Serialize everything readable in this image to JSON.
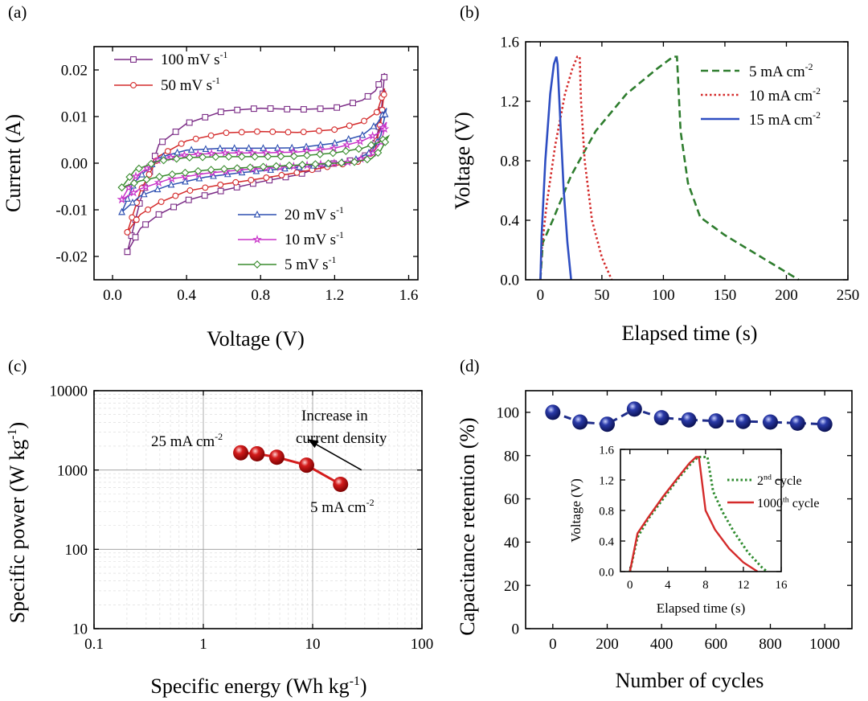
{
  "chart_data": [
    {
      "panel": "(a)",
      "type": "line",
      "xlabel": "Voltage (V)",
      "ylabel": "Current (A)",
      "xlim": [
        -0.1,
        1.65
      ],
      "ylim": [
        -0.025,
        0.025
      ],
      "xticks": [
        "0.0",
        "0.4",
        "0.8",
        "1.2",
        "1.6"
      ],
      "xtick_values": [
        0.0,
        0.4,
        0.8,
        1.2,
        1.6
      ],
      "yticks": [
        "-0.02",
        "-0.01",
        "0.00",
        "0.01",
        "0.02"
      ],
      "ytick_values": [
        -0.02,
        -0.01,
        0.0,
        0.01,
        0.02
      ],
      "series": [
        {
          "name": "100 mV s",
          "sup": "-1",
          "color": "#7b2c86",
          "marker": "square",
          "legend": "top",
          "upper": [
            [
              0.08,
              -0.019
            ],
            [
              0.15,
              -0.008
            ],
            [
              0.25,
              0.004
            ],
            [
              0.4,
              0.0085
            ],
            [
              0.6,
              0.0112
            ],
            [
              0.8,
              0.0118
            ],
            [
              1.0,
              0.0115
            ],
            [
              1.2,
              0.0118
            ],
            [
              1.35,
              0.0135
            ],
            [
              1.42,
              0.0155
            ],
            [
              1.47,
              0.0193
            ]
          ],
          "lower": [
            [
              1.47,
              0.0193
            ],
            [
              1.45,
              0.01
            ],
            [
              1.42,
              0.004
            ],
            [
              1.35,
              0.001
            ],
            [
              1.2,
              0.0
            ],
            [
              1.0,
              -0.0025
            ],
            [
              0.8,
              -0.004
            ],
            [
              0.6,
              -0.0058
            ],
            [
              0.4,
              -0.008
            ],
            [
              0.25,
              -0.011
            ],
            [
              0.15,
              -0.014
            ],
            [
              0.08,
              -0.019
            ]
          ]
        },
        {
          "name": "50 mV s",
          "sup": "-1",
          "color": "#d42b2b",
          "marker": "circle",
          "legend": "top",
          "upper": [
            [
              0.08,
              -0.0148
            ],
            [
              0.15,
              -0.006
            ],
            [
              0.25,
              0.0015
            ],
            [
              0.4,
              0.0048
            ],
            [
              0.6,
              0.0065
            ],
            [
              0.8,
              0.0068
            ],
            [
              1.0,
              0.0066
            ],
            [
              1.2,
              0.0072
            ],
            [
              1.35,
              0.0088
            ],
            [
              1.43,
              0.011
            ],
            [
              1.47,
              0.016
            ]
          ],
          "lower": [
            [
              1.47,
              0.016
            ],
            [
              1.45,
              0.009
            ],
            [
              1.42,
              0.003
            ],
            [
              1.35,
              0.0005
            ],
            [
              1.2,
              -0.0005
            ],
            [
              1.0,
              -0.002
            ],
            [
              0.8,
              -0.0033
            ],
            [
              0.6,
              -0.0045
            ],
            [
              0.4,
              -0.006
            ],
            [
              0.25,
              -0.0085
            ],
            [
              0.15,
              -0.011
            ],
            [
              0.08,
              -0.0148
            ]
          ]
        },
        {
          "name": "20 mV s",
          "sup": "-1",
          "color": "#2d4fb1",
          "marker": "triangle",
          "legend": "bottom",
          "upper": [
            [
              0.05,
              -0.0105
            ],
            [
              0.12,
              -0.004
            ],
            [
              0.25,
              0.0012
            ],
            [
              0.4,
              0.0028
            ],
            [
              0.6,
              0.0032
            ],
            [
              0.8,
              0.0032
            ],
            [
              1.0,
              0.0033
            ],
            [
              1.2,
              0.0043
            ],
            [
              1.35,
              0.006
            ],
            [
              1.43,
              0.0085
            ],
            [
              1.48,
              0.0118
            ]
          ],
          "lower": [
            [
              1.48,
              0.0118
            ],
            [
              1.45,
              0.006
            ],
            [
              1.4,
              0.0025
            ],
            [
              1.3,
              0.0005
            ],
            [
              1.1,
              -0.0005
            ],
            [
              0.9,
              -0.0013
            ],
            [
              0.7,
              -0.002
            ],
            [
              0.5,
              -0.003
            ],
            [
              0.3,
              -0.0048
            ],
            [
              0.15,
              -0.007
            ],
            [
              0.05,
              -0.0105
            ]
          ]
        },
        {
          "name": "10 mV s",
          "sup": "-1",
          "color": "#c832c8",
          "marker": "star",
          "legend": "bottom",
          "upper": [
            [
              0.05,
              -0.0078
            ],
            [
              0.12,
              -0.003
            ],
            [
              0.25,
              0.0008
            ],
            [
              0.4,
              0.0018
            ],
            [
              0.6,
              0.0022
            ],
            [
              0.8,
              0.0022
            ],
            [
              1.0,
              0.0024
            ],
            [
              1.2,
              0.0032
            ],
            [
              1.35,
              0.0048
            ],
            [
              1.44,
              0.0065
            ],
            [
              1.48,
              0.0088
            ]
          ],
          "lower": [
            [
              1.48,
              0.0088
            ],
            [
              1.45,
              0.0045
            ],
            [
              1.4,
              0.0018
            ],
            [
              1.3,
              0.0003
            ],
            [
              1.1,
              -0.0003
            ],
            [
              0.9,
              -0.0009
            ],
            [
              0.7,
              -0.0014
            ],
            [
              0.5,
              -0.0022
            ],
            [
              0.3,
              -0.0035
            ],
            [
              0.15,
              -0.0055
            ],
            [
              0.05,
              -0.0078
            ]
          ]
        },
        {
          "name": "5 mV s",
          "sup": "-1",
          "color": "#3a8c2f",
          "marker": "diamond",
          "legend": "bottom",
          "upper": [
            [
              0.05,
              -0.0052
            ],
            [
              0.12,
              -0.0015
            ],
            [
              0.25,
              0.0005
            ],
            [
              0.4,
              0.0012
            ],
            [
              0.6,
              0.0014
            ],
            [
              0.8,
              0.0014
            ],
            [
              1.0,
              0.0015
            ],
            [
              1.2,
              0.0022
            ],
            [
              1.35,
              0.0032
            ],
            [
              1.44,
              0.0045
            ],
            [
              1.49,
              0.0058
            ]
          ],
          "lower": [
            [
              1.49,
              0.0058
            ],
            [
              1.45,
              0.0028
            ],
            [
              1.4,
              0.001
            ],
            [
              1.3,
              0.0002
            ],
            [
              1.1,
              -0.0002
            ],
            [
              0.9,
              -0.0006
            ],
            [
              0.7,
              -0.001
            ],
            [
              0.5,
              -0.0015
            ],
            [
              0.3,
              -0.0025
            ],
            [
              0.15,
              -0.0038
            ],
            [
              0.05,
              -0.0052
            ]
          ]
        }
      ]
    },
    {
      "panel": "(b)",
      "type": "line",
      "xlabel": "Elapsed time (s)",
      "ylabel": "Voltage (V)",
      "xlim": [
        -12,
        250
      ],
      "ylim": [
        0,
        1.6
      ],
      "xticks": [
        "0",
        "50",
        "100",
        "150",
        "200",
        "250"
      ],
      "xtick_values": [
        0,
        50,
        100,
        150,
        200,
        250
      ],
      "yticks": [
        "0.0",
        "0.4",
        "0.8",
        "1.2",
        "1.6"
      ],
      "ytick_values": [
        0.0,
        0.4,
        0.8,
        1.2,
        1.6
      ],
      "series": [
        {
          "name": "5 mA cm",
          "sup": "-2",
          "color": "#2e7d2e",
          "dash": "dashed",
          "points": [
            [
              0,
              0
            ],
            [
              2,
              0.25
            ],
            [
              10,
              0.4
            ],
            [
              25,
              0.7
            ],
            [
              45,
              1.0
            ],
            [
              70,
              1.25
            ],
            [
              95,
              1.42
            ],
            [
              108,
              1.5
            ],
            [
              111,
              1.5
            ],
            [
              114,
              1.0
            ],
            [
              120,
              0.65
            ],
            [
              130,
              0.42
            ],
            [
              150,
              0.3
            ],
            [
              180,
              0.15
            ],
            [
              210,
              0.0
            ]
          ]
        },
        {
          "name": "10 mA cm",
          "sup": "-2",
          "color": "#d42b2b",
          "dash": "dotted",
          "points": [
            [
              0,
              0
            ],
            [
              1,
              0.2
            ],
            [
              5,
              0.5
            ],
            [
              12,
              0.9
            ],
            [
              20,
              1.25
            ],
            [
              26,
              1.42
            ],
            [
              30,
              1.5
            ],
            [
              32,
              1.5
            ],
            [
              33,
              1.2
            ],
            [
              36,
              0.8
            ],
            [
              42,
              0.4
            ],
            [
              50,
              0.15
            ],
            [
              58,
              0.0
            ]
          ]
        },
        {
          "name": "15 mA cm",
          "sup": "-2",
          "color": "#2e4ec2",
          "dash": "solid",
          "points": [
            [
              0,
              0
            ],
            [
              1,
              0.3
            ],
            [
              4,
              0.8
            ],
            [
              8,
              1.25
            ],
            [
              11,
              1.45
            ],
            [
              13,
              1.5
            ],
            [
              14,
              1.45
            ],
            [
              16,
              1.1
            ],
            [
              19,
              0.6
            ],
            [
              22,
              0.25
            ],
            [
              25,
              0.0
            ]
          ]
        }
      ]
    },
    {
      "panel": "(c)",
      "type": "scatter",
      "xlabel": "Specific energy (Wh kg",
      "xlabel_sup": "-1",
      "xlabel_end": ")",
      "ylabel": "Specific power (W kg",
      "ylabel_sup": "-1",
      "ylabel_end": ")",
      "xscale": "log",
      "yscale": "log",
      "xlim": [
        0.1,
        100
      ],
      "ylim": [
        10,
        10000
      ],
      "xticks": [
        "0.1",
        "1",
        "10",
        "100"
      ],
      "xtick_values": [
        0.1,
        1,
        10,
        100
      ],
      "yticks": [
        "10",
        "100",
        "1000",
        "10000"
      ],
      "ytick_values": [
        10,
        100,
        1000,
        10000
      ],
      "grid": true,
      "color": "#d41c1c",
      "points": [
        [
          2.2,
          1650
        ],
        [
          3.1,
          1600
        ],
        [
          4.7,
          1450
        ],
        [
          8.8,
          1150
        ],
        [
          18,
          660
        ]
      ],
      "annotation_arrow": {
        "from": [
          28,
          1000
        ],
        "to": [
          9,
          2450
        ]
      },
      "annotations": {
        "high_label": "25 mA cm",
        "high_sup": "-2",
        "low_label": "5 mA cm",
        "low_sup": "-2",
        "arrow_line1": "Increase in",
        "arrow_line2": "current density"
      }
    },
    {
      "panel": "(d)",
      "type": "scatter",
      "xlabel": "Number of cycles",
      "ylabel": "Capacitance retention (%)",
      "xlim": [
        -100,
        1100
      ],
      "ylim": [
        0,
        110
      ],
      "xticks": [
        "0",
        "200",
        "400",
        "600",
        "800",
        "1000"
      ],
      "xtick_values": [
        0,
        200,
        400,
        600,
        800,
        1000
      ],
      "yticks": [
        "0",
        "20",
        "40",
        "60",
        "80",
        "100"
      ],
      "ytick_values": [
        0,
        20,
        40,
        60,
        80,
        100
      ],
      "color": "#1f2d8a",
      "points": [
        [
          0,
          100
        ],
        [
          100,
          95.5
        ],
        [
          200,
          94.5
        ],
        [
          300,
          101.5
        ],
        [
          400,
          97.5
        ],
        [
          500,
          96.5
        ],
        [
          600,
          96
        ],
        [
          700,
          95.8
        ],
        [
          800,
          95.5
        ],
        [
          900,
          95
        ],
        [
          1000,
          94.5
        ]
      ],
      "inset": {
        "type": "line",
        "xlabel": "Elapsed time (s)",
        "ylabel": "Voltage (V)",
        "xlim": [
          -1,
          16
        ],
        "ylim": [
          0,
          1.6
        ],
        "xticks": [
          "0",
          "4",
          "8",
          "12",
          "16"
        ],
        "xtick_values": [
          0,
          4,
          8,
          12,
          16
        ],
        "yticks": [
          "0.0",
          "0.4",
          "0.8",
          "1.2",
          "1.6"
        ],
        "ytick_values": [
          0.0,
          0.4,
          0.8,
          1.2,
          1.6
        ],
        "series": [
          {
            "name": "2",
            "sup": "nd",
            "suffix": " cycle",
            "color": "#2e8b2e",
            "dash": "dotted",
            "points": [
              [
                0,
                0
              ],
              [
                0.8,
                0.45
              ],
              [
                2,
                0.7
              ],
              [
                3.5,
                0.95
              ],
              [
                5,
                1.2
              ],
              [
                6.5,
                1.42
              ],
              [
                7.2,
                1.5
              ],
              [
                8.2,
                1.5
              ],
              [
                8.8,
                1.05
              ],
              [
                9.8,
                0.78
              ],
              [
                11,
                0.52
              ],
              [
                12.5,
                0.25
              ],
              [
                14,
                0.05
              ],
              [
                14.5,
                0.0
              ]
            ]
          },
          {
            "name": "1000",
            "sup": "th",
            "suffix": " cycle",
            "color": "#d42b2b",
            "dash": "solid",
            "points": [
              [
                0,
                0
              ],
              [
                0.8,
                0.5
              ],
              [
                2,
                0.72
              ],
              [
                3.5,
                0.98
              ],
              [
                5,
                1.22
              ],
              [
                6.3,
                1.42
              ],
              [
                7,
                1.5
              ],
              [
                7.3,
                1.5
              ],
              [
                8,
                0.8
              ],
              [
                9,
                0.55
              ],
              [
                10.5,
                0.3
              ],
              [
                12,
                0.12
              ],
              [
                13.5,
                0.0
              ]
            ]
          }
        ]
      }
    }
  ]
}
